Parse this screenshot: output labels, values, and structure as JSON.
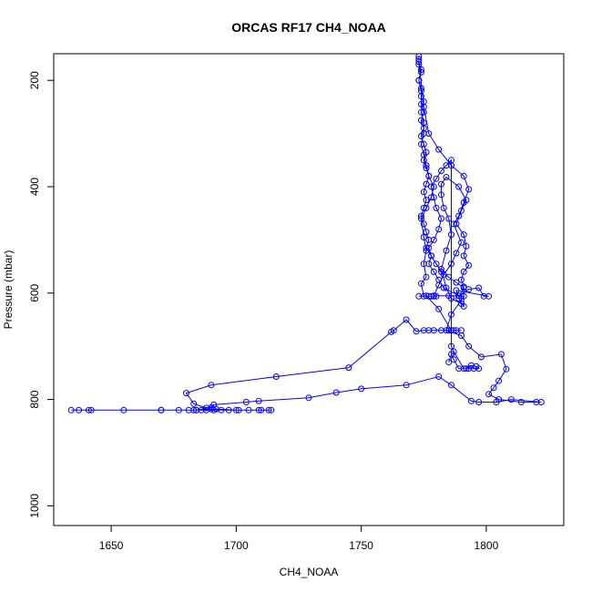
{
  "chart_data": {
    "type": "scatter",
    "title": "ORCAS RF17 CH4_NOAA",
    "xlabel": "CH4_NOAA",
    "ylabel": "Pressure (mbar)",
    "xlim": [
      1627,
      1831
    ],
    "ylim": [
      1037,
      150
    ],
    "y_inverted": true,
    "x_ticks": [
      1650,
      1700,
      1750,
      1800
    ],
    "y_ticks": [
      200,
      400,
      600,
      800,
      1000
    ],
    "grid": false,
    "legend": "none",
    "colors": {
      "series": "#0000ff",
      "axes": "#000000"
    },
    "series": [
      {
        "marker": "open-circle",
        "line": true,
        "points": [
          [
            1773,
            155
          ],
          [
            1773,
            160
          ],
          [
            1773,
            170
          ],
          [
            1774,
            185
          ],
          [
            1773,
            200
          ],
          [
            1774,
            215
          ],
          [
            1774,
            230
          ],
          [
            1774,
            245
          ],
          [
            1775,
            260
          ],
          [
            1774,
            275
          ],
          [
            1775,
            290
          ],
          [
            1774,
            305
          ],
          [
            1775,
            320
          ],
          [
            1776,
            335
          ],
          [
            1775,
            350
          ],
          [
            1776,
            365
          ],
          [
            1777,
            380
          ],
          [
            1776,
            395
          ],
          [
            1775,
            410
          ],
          [
            1776,
            425
          ],
          [
            1775,
            440
          ],
          [
            1774,
            455
          ],
          [
            1775,
            470
          ],
          [
            1776,
            485
          ],
          [
            1777,
            500
          ],
          [
            1776,
            515
          ],
          [
            1778,
            530
          ],
          [
            1777,
            545
          ],
          [
            1779,
            560
          ],
          [
            1781,
            575
          ],
          [
            1783,
            590
          ],
          [
            1789,
            605
          ],
          [
            1791,
            606
          ],
          [
            1786,
            640
          ],
          [
            1784,
            670
          ],
          [
            1790,
            680
          ],
          [
            1793,
            700
          ],
          [
            1798,
            720
          ],
          [
            1806,
            715
          ],
          [
            1808,
            743
          ],
          [
            1805,
            765
          ],
          [
            1803,
            778
          ],
          [
            1801,
            790
          ],
          [
            1805,
            800
          ],
          [
            1814,
            805
          ],
          [
            1820,
            805
          ],
          [
            1822,
            805
          ],
          [
            1810,
            800
          ],
          [
            1804,
            805
          ],
          [
            1797,
            805
          ],
          [
            1794,
            803
          ],
          [
            1786,
            773
          ],
          [
            1781,
            757
          ],
          [
            1768,
            773
          ],
          [
            1750,
            780
          ],
          [
            1740,
            787
          ],
          [
            1729,
            797
          ],
          [
            1709,
            803
          ],
          [
            1704,
            805
          ],
          [
            1691,
            810
          ],
          [
            1690,
            815
          ],
          [
            1684,
            820
          ],
          [
            1692,
            818
          ],
          [
            1700,
            820
          ],
          [
            1709,
            820
          ],
          [
            1713,
            820
          ],
          [
            1714,
            820
          ],
          [
            1710,
            820
          ],
          [
            1705,
            820
          ],
          [
            1701,
            820
          ],
          [
            1697,
            820
          ],
          [
            1694,
            820
          ],
          [
            1691,
            820
          ],
          [
            1688,
            820
          ],
          [
            1686,
            820
          ],
          [
            1683,
            820
          ],
          [
            1681,
            820
          ],
          [
            1677,
            820
          ],
          [
            1670,
            820
          ],
          [
            1655,
            820
          ],
          [
            1642,
            820
          ],
          [
            1641,
            820
          ],
          [
            1637,
            820
          ],
          [
            1634,
            820
          ],
          [
            1670,
            820
          ],
          [
            1684,
            820
          ],
          [
            1690,
            818
          ],
          [
            1688,
            816
          ],
          [
            1683,
            808
          ],
          [
            1680,
            788
          ],
          [
            1690,
            773
          ],
          [
            1716,
            757
          ],
          [
            1745,
            740
          ],
          [
            1762,
            673
          ],
          [
            1763,
            670
          ],
          [
            1768,
            650
          ],
          [
            1772,
            672
          ],
          [
            1775,
            670
          ],
          [
            1777,
            670
          ],
          [
            1779,
            670
          ],
          [
            1782,
            670
          ],
          [
            1785,
            670
          ],
          [
            1787,
            670
          ],
          [
            1788,
            670
          ],
          [
            1790,
            670
          ],
          [
            1786,
            670
          ],
          [
            1781,
            630
          ],
          [
            1776,
            605
          ],
          [
            1773,
            606
          ],
          [
            1777,
            606
          ],
          [
            1779,
            606
          ],
          [
            1780,
            606
          ],
          [
            1778,
            606
          ],
          [
            1775,
            606
          ],
          [
            1774,
            582
          ],
          [
            1776,
            570
          ],
          [
            1775,
            545
          ],
          [
            1776,
            520
          ],
          [
            1775,
            495
          ],
          [
            1774,
            460
          ],
          [
            1776,
            440
          ],
          [
            1778,
            420
          ],
          [
            1779,
            400
          ],
          [
            1777,
            380
          ],
          [
            1776,
            360
          ],
          [
            1775,
            340
          ],
          [
            1774,
            320
          ],
          [
            1775,
            300
          ],
          [
            1775,
            280
          ],
          [
            1774,
            260
          ],
          [
            1775,
            240
          ],
          [
            1774,
            220
          ],
          [
            1773,
            200
          ],
          [
            1774,
            180
          ],
          [
            1773,
            165
          ],
          [
            1775,
            250
          ],
          [
            1777,
            300
          ],
          [
            1781,
            330
          ],
          [
            1786,
            360
          ],
          [
            1791,
            380
          ],
          [
            1793,
            405
          ],
          [
            1791,
            430
          ],
          [
            1789,
            455
          ],
          [
            1787,
            470
          ],
          [
            1790,
            505
          ],
          [
            1788,
            525
          ],
          [
            1786,
            545
          ],
          [
            1783,
            565
          ],
          [
            1781,
            585
          ],
          [
            1779,
            605
          ],
          [
            1785,
            605
          ],
          [
            1789,
            605
          ],
          [
            1793,
            593
          ],
          [
            1797,
            590
          ],
          [
            1799,
            606
          ],
          [
            1801,
            606
          ],
          [
            1788,
            595
          ],
          [
            1790,
            620
          ],
          [
            1786,
            610
          ],
          [
            1784,
            590
          ],
          [
            1782,
            555
          ],
          [
            1784,
            520
          ],
          [
            1786,
            490
          ],
          [
            1785,
            460
          ],
          [
            1783,
            440
          ],
          [
            1782,
            415
          ],
          [
            1782,
            395
          ],
          [
            1784,
            382
          ],
          [
            1789,
            400
          ],
          [
            1792,
            425
          ],
          [
            1790,
            445
          ],
          [
            1788,
            470
          ],
          [
            1791,
            490
          ],
          [
            1792,
            512
          ],
          [
            1791,
            530
          ],
          [
            1793,
            548
          ],
          [
            1791,
            560
          ],
          [
            1790,
            575
          ],
          [
            1791,
            588
          ],
          [
            1789,
            610
          ],
          [
            1791,
            625
          ],
          [
            1791,
            590
          ],
          [
            1788,
            580
          ],
          [
            1785,
            570
          ],
          [
            1782,
            560
          ],
          [
            1780,
            545
          ],
          [
            1778,
            530
          ],
          [
            1777,
            515
          ],
          [
            1779,
            500
          ],
          [
            1781,
            480
          ],
          [
            1782,
            460
          ],
          [
            1780,
            440
          ],
          [
            1779,
            420
          ],
          [
            1778,
            400
          ],
          [
            1780,
            385
          ],
          [
            1782,
            370
          ],
          [
            1784,
            360
          ],
          [
            1786,
            350
          ],
          [
            1786,
            700
          ],
          [
            1787,
            710
          ],
          [
            1791,
            742
          ],
          [
            1793,
            742
          ],
          [
            1795,
            742
          ],
          [
            1797,
            742
          ],
          [
            1796,
            738
          ],
          [
            1794,
            736
          ],
          [
            1792,
            742
          ],
          [
            1789,
            742
          ],
          [
            1787,
            725
          ],
          [
            1786,
            715
          ],
          [
            1785,
            730
          ]
        ]
      }
    ]
  }
}
